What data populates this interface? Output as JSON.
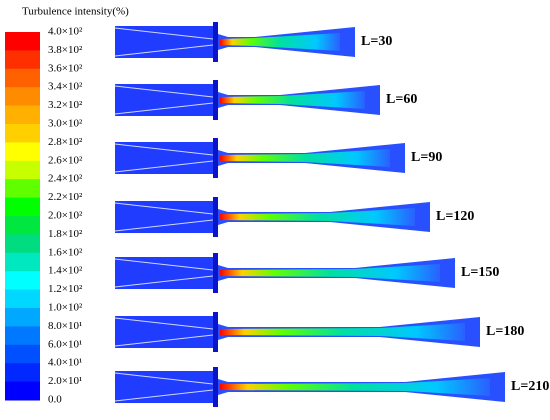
{
  "colorbar": {
    "title": "Turbulence intensity(%)",
    "labels": [
      "4.0×10²",
      "3.8×10²",
      "3.6×10²",
      "3.4×10²",
      "3.2×10²",
      "3.0×10²",
      "2.8×10²",
      "2.6×10²",
      "2.4×10²",
      "2.2×10²",
      "2.0×10²",
      "1.8×10²",
      "1.6×10²",
      "1.4×10²",
      "1.2×10²",
      "1.0×10²",
      "8.0×10¹",
      "6.0×10¹",
      "4.0×10¹",
      "2.0×10¹",
      "0.0"
    ]
  },
  "cases": [
    {
      "label": "L=30"
    },
    {
      "label": "L=60"
    },
    {
      "label": "L=90"
    },
    {
      "label": "L=120"
    },
    {
      "label": "L=150"
    },
    {
      "label": "L=180"
    },
    {
      "label": "L=210"
    }
  ]
}
